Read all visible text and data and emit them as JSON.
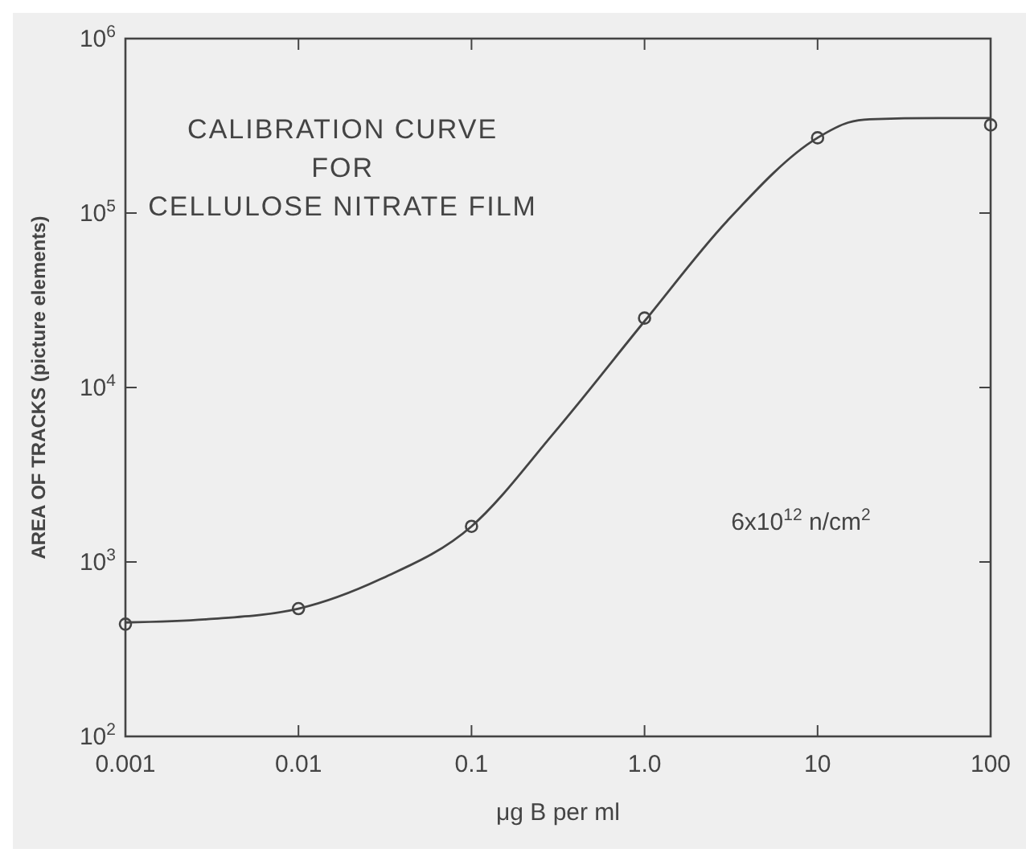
{
  "chart_data": {
    "type": "scatter",
    "title": "CALIBRATION CURVE\nFOR\nCELLULOSE NITRATE FILM",
    "xlabel": "μg B per ml",
    "ylabel": "AREA OF TRACKS (picture elements)",
    "annotations": [
      {
        "text": "6x10$^{12}$ n/cm$^{2}$"
      }
    ],
    "log": "xy",
    "marker": "circle",
    "grid": false,
    "xlim": [
      0.001,
      100
    ],
    "xticks": [
      0.001,
      0.01,
      0.1,
      {
        "value": 1,
        "label": "1.0"
      },
      10,
      100
    ],
    "ylim": [
      100,
      1000000
    ],
    "yticks": [
      {
        "value": 100,
        "label": "10$^{2}$"
      },
      {
        "value": 1000,
        "label": "10$^{3}$"
      },
      {
        "value": 10000,
        "label": "10$^{4}$"
      },
      {
        "value": 100000,
        "label": "10$^{5}$"
      },
      {
        "value": 1000000,
        "label": "10$^{6}$"
      }
    ],
    "series": [
      {
        "color": "#444444",
        "x": [
          0.001,
          0.01,
          0.1,
          1,
          10,
          100
        ],
        "values": [
          440,
          540,
          1600,
          25000,
          270000,
          320000
        ]
      },
      {
        "type": "line",
        "color": "#444444",
        "marker": "none",
        "line_style": "solid",
        "x": [
          0.001,
          0.003,
          0.01,
          0.03,
          0.1,
          0.3,
          1,
          3,
          10,
          15,
          20,
          50,
          100
        ],
        "values": [
          450,
          470,
          540,
          800,
          1600,
          5500,
          24000,
          90000,
          270000,
          330000,
          345000,
          350000,
          350000
        ]
      }
    ]
  }
}
